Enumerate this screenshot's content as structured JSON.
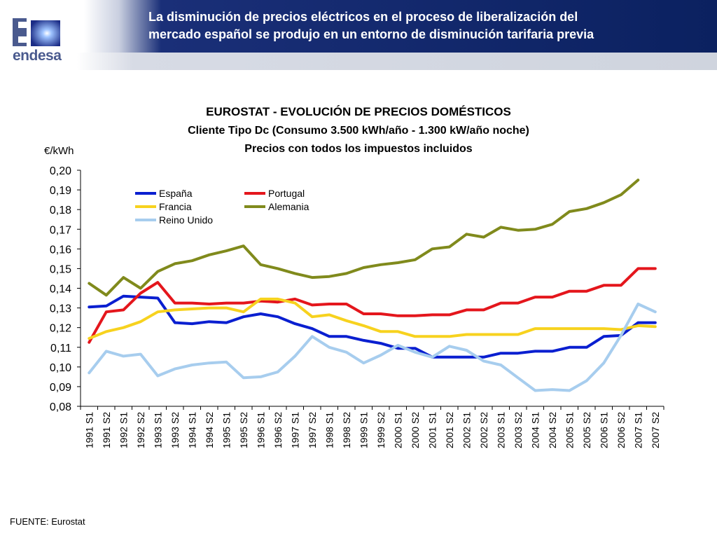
{
  "header": {
    "title_line1": "La disminución de precios eléctricos en el proceso de liberalización del",
    "title_line2": "mercado español se produjo en un entorno de disminución tarifaria previa",
    "logo_text": "endesa",
    "logo_icon": "endesa-e-logo-icon"
  },
  "chart_data": {
    "type": "line",
    "title": "EUROSTAT - EVOLUCIÓN DE PRECIOS DOMÉSTICOS",
    "subtitle": "Cliente Tipo Dc (Consumo 3.500 kWh/año - 1.300 kW/año noche)",
    "subtitle2": "Precios con todos los impuestos incluidos",
    "ylabel": "€/kWh",
    "xlabel": "",
    "ylim": [
      0.08,
      0.2
    ],
    "yticks": [
      "0,20",
      "0,19",
      "0,18",
      "0,17",
      "0,16",
      "0,15",
      "0,14",
      "0,13",
      "0,12",
      "0,11",
      "0,10",
      "0,09",
      "0,08"
    ],
    "grid": false,
    "legend_position": "top-left",
    "categories": [
      "1991 S1",
      "1991 S2",
      "1992 S1",
      "1992 S2",
      "1993 S1",
      "1993 S2",
      "1994 S1",
      "1994 S2",
      "1995 S1",
      "1995 S2",
      "1996 S1",
      "1996 S2",
      "1997 S1",
      "1997 S2",
      "1998 S1",
      "1998 S2",
      "1999 S1",
      "1999 S2",
      "2000 S1",
      "2000 S2",
      "2001 S1",
      "2001 S2",
      "2002 S1",
      "2002 S2",
      "2003 S1",
      "2003 S2",
      "2004 S1",
      "2004 S2",
      "2005 S1",
      "2005 S2",
      "2006 S1",
      "2006 S2",
      "2007 S1",
      "2007 S2"
    ],
    "series": [
      {
        "name": "España",
        "color": "#0a1fd0",
        "values": [
          0.1305,
          0.131,
          0.136,
          0.1355,
          0.135,
          0.1225,
          0.122,
          0.123,
          0.1225,
          0.1255,
          0.127,
          0.1255,
          0.122,
          0.1195,
          0.1155,
          0.1155,
          0.1135,
          0.112,
          0.1095,
          0.1095,
          0.105,
          0.105,
          0.105,
          0.105,
          0.107,
          0.107,
          0.108,
          0.108,
          0.11,
          0.11,
          0.1155,
          0.116,
          0.1225,
          0.1225
        ]
      },
      {
        "name": "Portugal",
        "color": "#e4161c",
        "values": [
          0.1125,
          0.128,
          0.129,
          0.1375,
          0.143,
          0.1325,
          0.1325,
          0.132,
          0.1325,
          0.1325,
          0.1335,
          0.133,
          0.1345,
          0.1315,
          0.132,
          0.132,
          0.127,
          0.127,
          0.126,
          0.126,
          0.1265,
          0.1265,
          0.129,
          0.129,
          0.1325,
          0.1325,
          0.1355,
          0.1355,
          0.1385,
          0.1385,
          0.1415,
          0.1415,
          0.15,
          0.15
        ]
      },
      {
        "name": "Francia",
        "color": "#f7d21e",
        "values": [
          0.1145,
          0.118,
          0.12,
          0.123,
          0.128,
          0.129,
          0.1295,
          0.13,
          0.13,
          0.128,
          0.1345,
          0.1345,
          0.1325,
          0.1255,
          0.1265,
          0.1235,
          0.121,
          0.118,
          0.118,
          0.1155,
          0.1155,
          0.1155,
          0.1165,
          0.1165,
          0.1165,
          0.1165,
          0.1195,
          0.1195,
          0.1195,
          0.1195,
          0.1195,
          0.119,
          0.121,
          0.1205
        ]
      },
      {
        "name": "Alemania",
        "color": "#808a1c",
        "values": [
          0.1425,
          0.1365,
          0.1455,
          0.14,
          0.1485,
          0.1525,
          0.154,
          0.157,
          0.159,
          0.1615,
          0.152,
          0.15,
          0.1475,
          0.1455,
          0.146,
          0.1475,
          0.1505,
          0.152,
          0.153,
          0.1545,
          0.16,
          0.161,
          0.1675,
          0.166,
          0.171,
          0.1695,
          0.17,
          0.1725,
          0.179,
          0.1805,
          0.1835,
          0.1875,
          0.195,
          null
        ]
      },
      {
        "name": "Reino Unido",
        "color": "#a7cdee",
        "values": [
          0.097,
          0.108,
          0.1055,
          0.1065,
          0.0955,
          0.099,
          0.101,
          0.102,
          0.1025,
          0.0945,
          0.095,
          0.0975,
          0.1055,
          0.1155,
          0.11,
          0.1075,
          0.102,
          0.106,
          0.111,
          0.1075,
          0.105,
          0.1105,
          0.1085,
          0.103,
          0.101,
          0.0945,
          0.088,
          0.0885,
          0.088,
          0.093,
          0.102,
          0.116,
          0.132,
          0.128
        ]
      }
    ]
  },
  "footer": {
    "source": "FUENTE: Eurostat"
  }
}
